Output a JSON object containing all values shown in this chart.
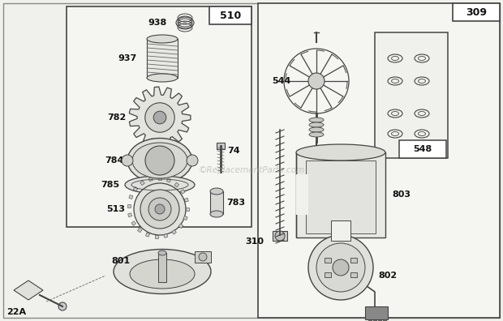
{
  "bg_color": "#f0f0ec",
  "border_color": "#333333",
  "text_color": "#111111",
  "watermark": "©ReplacementParts.com",
  "fig_w": 6.2,
  "fig_h": 3.96,
  "dpi": 100
}
